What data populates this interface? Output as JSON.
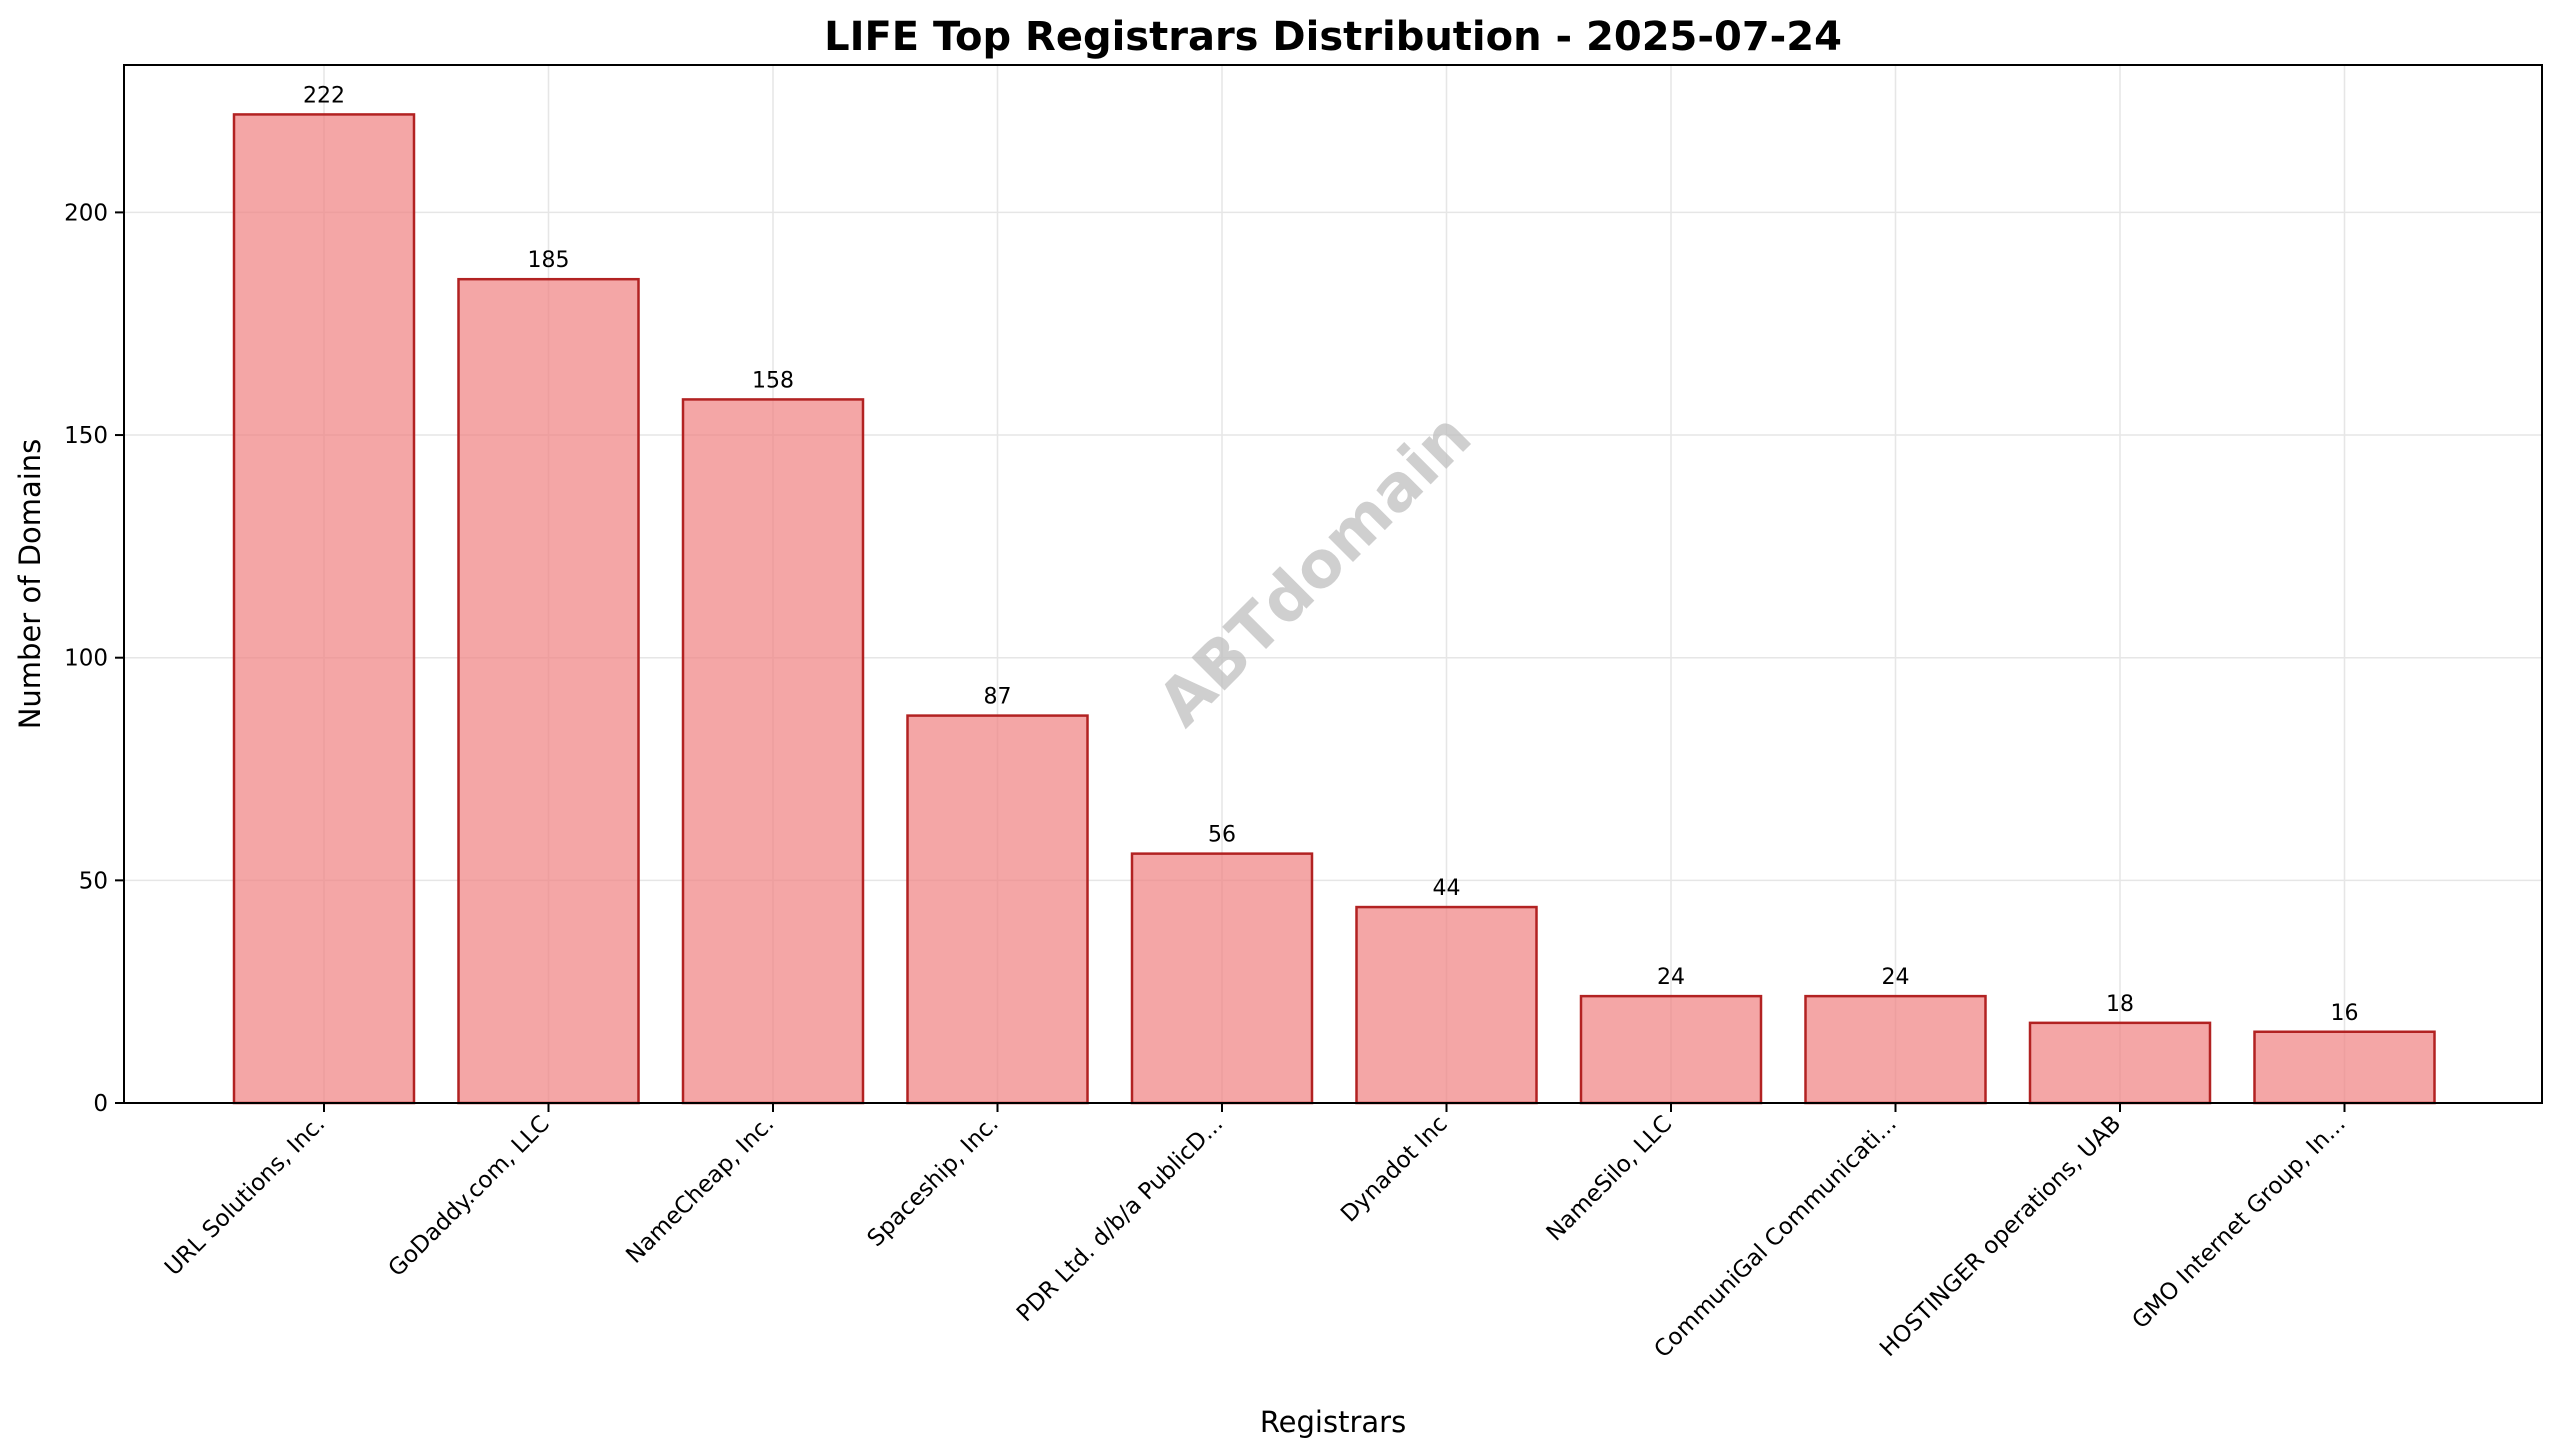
{
  "chart_data": {
    "type": "bar",
    "title": "LIFE Top Registrars Distribution - 2025-07-24",
    "xlabel": "Registrars",
    "ylabel": "Number of Domains",
    "categories": [
      "URL Solutions, Inc.",
      "GoDaddy.com, LLC",
      "NameCheap, Inc.",
      "Spaceship, Inc.",
      "PDR Ltd. d/b/a PublicD...",
      "Dynadot Inc",
      "NameSilo, LLC",
      "CommuniGal Communicati...",
      "HOSTINGER operations, UAB",
      "GMO Internet Group, In..."
    ],
    "values": [
      222,
      185,
      158,
      87,
      56,
      44,
      24,
      24,
      18,
      16
    ],
    "ylim": [
      0,
      233.1
    ],
    "yticks": [
      0,
      50,
      100,
      150,
      200
    ],
    "grid": true,
    "bar_color": "#f08080",
    "bar_edge_color": "#b22222",
    "watermark": "ABTdomain"
  }
}
